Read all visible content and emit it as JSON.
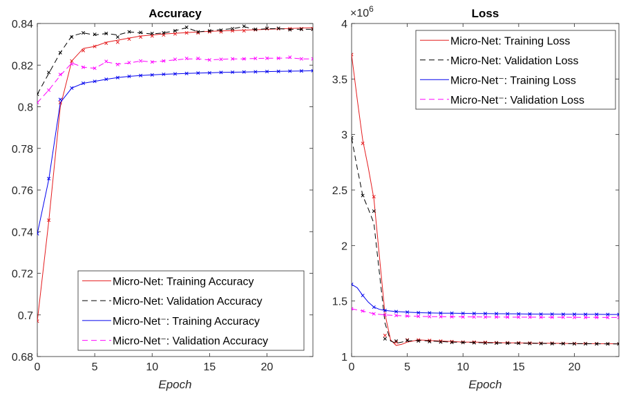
{
  "chart_data": [
    {
      "type": "line",
      "title": "Accuracy",
      "xlabel": "Epoch",
      "ylabel": "",
      "xlim": [
        0,
        24
      ],
      "ylim": [
        0.68,
        0.84
      ],
      "xticks": [
        "0",
        "5",
        "10",
        "15",
        "20"
      ],
      "yticks": [
        "0.68",
        "0.7",
        "0.72",
        "0.74",
        "0.76",
        "0.78",
        "0.8",
        "0.82",
        "0.84"
      ],
      "legend_position": "bottom-right",
      "grid": false,
      "series": [
        {
          "name": "Micro-Net: Training Accuracy",
          "color": "#e41a1c",
          "style": "solid",
          "x": [
            0,
            1,
            2,
            3,
            4,
            5,
            6,
            7,
            8,
            9,
            10,
            11,
            12,
            13,
            14,
            15,
            16,
            17,
            18,
            19,
            20,
            21,
            22,
            23,
            24
          ],
          "values": [
            0.697,
            0.745,
            0.8,
            0.822,
            0.828,
            0.829,
            0.831,
            0.832,
            0.833,
            0.834,
            0.8345,
            0.835,
            0.8353,
            0.8356,
            0.836,
            0.8362,
            0.8364,
            0.8366,
            0.8368,
            0.837,
            0.8372,
            0.8374,
            0.8376,
            0.8378,
            0.838
          ],
          "markers": [
            0.697,
            0.7455,
            0.802,
            0.822,
            0.827,
            0.829,
            0.8305,
            0.831,
            0.8325,
            0.8335,
            0.834,
            0.8345,
            0.835,
            0.8355,
            0.8355,
            0.836,
            0.836,
            0.8365,
            0.8365,
            0.837,
            0.8375,
            0.8375,
            0.8375,
            0.8375,
            0.8375
          ]
        },
        {
          "name": "Micro-Net: Validation Accuracy",
          "color": "#000000",
          "style": "dashed",
          "x": [
            0,
            1,
            2,
            3,
            4,
            5,
            6,
            7,
            8,
            9,
            10,
            11,
            12,
            13,
            14,
            15,
            16,
            17,
            18,
            19,
            20,
            21,
            22,
            23,
            24
          ],
          "values": [
            0.806,
            0.816,
            0.826,
            0.834,
            0.8355,
            0.8345,
            0.8352,
            0.8345,
            0.836,
            0.8355,
            0.835,
            0.8355,
            0.8365,
            0.838,
            0.836,
            0.8365,
            0.837,
            0.8375,
            0.8385,
            0.837,
            0.8375,
            0.8375,
            0.8372,
            0.8372,
            0.8372
          ],
          "markers": [
            0.806,
            0.8165,
            0.826,
            0.8335,
            0.8355,
            0.8348,
            0.8352,
            0.8335,
            0.836,
            0.8357,
            0.8352,
            0.8355,
            0.8365,
            0.8382,
            0.836,
            0.8365,
            0.8368,
            0.8375,
            0.8387,
            0.8372,
            0.8377,
            0.8377,
            0.837,
            0.8372,
            0.8372
          ]
        },
        {
          "name": "Micro-Net⁻: Training Accuracy",
          "color": "#0000ee",
          "style": "solid",
          "x": [
            0,
            1,
            2,
            3,
            4,
            5,
            6,
            7,
            8,
            9,
            10,
            11,
            12,
            13,
            14,
            15,
            16,
            17,
            18,
            19,
            20,
            21,
            22,
            23,
            24
          ],
          "values": [
            0.739,
            0.765,
            0.802,
            0.809,
            0.8113,
            0.8122,
            0.8132,
            0.814,
            0.8146,
            0.815,
            0.8153,
            0.8156,
            0.8158,
            0.816,
            0.8162,
            0.8163,
            0.8165,
            0.8166,
            0.8167,
            0.8168,
            0.8169,
            0.817,
            0.8171,
            0.8172,
            0.8173
          ],
          "markers": [
            0.739,
            0.7655,
            0.8035,
            0.809,
            0.8113,
            0.8122,
            0.8132,
            0.814,
            0.8146,
            0.815,
            0.8153,
            0.8156,
            0.8158,
            0.816,
            0.8162,
            0.8163,
            0.8165,
            0.8166,
            0.8167,
            0.8168,
            0.8169,
            0.817,
            0.8171,
            0.8172,
            0.8173
          ]
        },
        {
          "name": "Micro-Net⁻: Validation Accuracy",
          "color": "#ff00ff",
          "style": "dashed",
          "x": [
            0,
            1,
            2,
            3,
            4,
            5,
            6,
            7,
            8,
            9,
            10,
            11,
            12,
            13,
            14,
            15,
            16,
            17,
            18,
            19,
            20,
            21,
            22,
            23,
            24
          ],
          "values": [
            0.802,
            0.808,
            0.815,
            0.821,
            0.819,
            0.8185,
            0.8215,
            0.8205,
            0.821,
            0.822,
            0.8215,
            0.822,
            0.8225,
            0.823,
            0.823,
            0.8225,
            0.8228,
            0.823,
            0.823,
            0.8232,
            0.8233,
            0.8233,
            0.8235,
            0.823,
            0.823
          ],
          "markers": [
            0.802,
            0.808,
            0.8155,
            0.8205,
            0.819,
            0.8185,
            0.8218,
            0.8203,
            0.8212,
            0.822,
            0.8215,
            0.822,
            0.8228,
            0.8232,
            0.8232,
            0.8225,
            0.8228,
            0.823,
            0.823,
            0.8232,
            0.8233,
            0.8233,
            0.8238,
            0.823,
            0.823
          ]
        }
      ]
    },
    {
      "type": "line",
      "title": "Loss",
      "xlabel": "Epoch",
      "ylabel": "",
      "y_exponent_label": "×10",
      "y_exponent": "6",
      "xlim": [
        0,
        24
      ],
      "ylim": [
        1,
        4
      ],
      "xticks": [
        "0",
        "5",
        "10",
        "15",
        "20"
      ],
      "yticks": [
        "1",
        "1.5",
        "2",
        "2.5",
        "3",
        "3.5",
        "4"
      ],
      "legend_position": "top-right",
      "grid": false,
      "series": [
        {
          "name": "Micro-Net: Training Loss",
          "color": "#e41a1c",
          "style": "solid",
          "x": [
            0,
            0.5,
            1,
            1.5,
            2,
            2.5,
            3,
            3.5,
            4,
            4.5,
            5,
            6,
            7,
            8,
            9,
            10,
            11,
            12,
            13,
            14,
            15,
            16,
            17,
            18,
            19,
            20,
            21,
            22,
            23,
            24
          ],
          "values": [
            3.72,
            3.32,
            2.95,
            2.7,
            2.42,
            1.9,
            1.38,
            1.15,
            1.1,
            1.11,
            1.13,
            1.15,
            1.145,
            1.14,
            1.135,
            1.13,
            1.13,
            1.128,
            1.125,
            1.124,
            1.123,
            1.122,
            1.12,
            1.12,
            1.118,
            1.117,
            1.117,
            1.116,
            1.115,
            1.115
          ],
          "markers": [
            3.72,
            2.92,
            2.44,
            1.19,
            1.13,
            1.15,
            1.15,
            1.145,
            1.14,
            1.135,
            1.13,
            1.13,
            1.128,
            1.125,
            1.124,
            1.123,
            1.122,
            1.12,
            1.12,
            1.118,
            1.117,
            1.117,
            1.116,
            1.115,
            1.115
          ],
          "marker_x": [
            0,
            1,
            2,
            3,
            4,
            5,
            6,
            7,
            8,
            9,
            10,
            11,
            12,
            13,
            14,
            15,
            16,
            17,
            18,
            19,
            20,
            21,
            22,
            23,
            24
          ]
        },
        {
          "name": "Micro-Net: Validation Loss",
          "color": "#000000",
          "style": "dashed",
          "x": [
            0,
            0.5,
            1,
            1.5,
            2,
            2.5,
            3,
            3.5,
            4,
            4.5,
            5,
            6,
            7,
            8,
            9,
            10,
            11,
            12,
            13,
            14,
            15,
            16,
            17,
            18,
            19,
            20,
            21,
            22,
            23,
            24
          ],
          "values": [
            2.97,
            2.7,
            2.45,
            2.33,
            2.2,
            1.75,
            1.3,
            1.14,
            1.12,
            1.13,
            1.14,
            1.145,
            1.14,
            1.135,
            1.13,
            1.128,
            1.126,
            1.124,
            1.122,
            1.121,
            1.12,
            1.119,
            1.118,
            1.117,
            1.116,
            1.116,
            1.115,
            1.115,
            1.114,
            1.114
          ],
          "markers": [
            2.97,
            2.45,
            2.31,
            1.16,
            1.14,
            1.145,
            1.14,
            1.135,
            1.13,
            1.128,
            1.126,
            1.124,
            1.122,
            1.121,
            1.12,
            1.119,
            1.118,
            1.117,
            1.116,
            1.116,
            1.115,
            1.115,
            1.114,
            1.114,
            1.114
          ],
          "marker_x": [
            0,
            1,
            2,
            3,
            4,
            5,
            6,
            7,
            8,
            9,
            10,
            11,
            12,
            13,
            14,
            15,
            16,
            17,
            18,
            19,
            20,
            21,
            22,
            23,
            24
          ]
        },
        {
          "name": "Micro-Net⁻: Training Loss",
          "color": "#0000ee",
          "style": "solid",
          "x": [
            0,
            0.5,
            1,
            1.5,
            2,
            2.5,
            3,
            3.5,
            4,
            5,
            6,
            7,
            8,
            9,
            10,
            11,
            12,
            13,
            14,
            15,
            16,
            17,
            18,
            19,
            20,
            21,
            22,
            23,
            24
          ],
          "values": [
            1.65,
            1.62,
            1.55,
            1.49,
            1.445,
            1.425,
            1.415,
            1.41,
            1.405,
            1.4,
            1.395,
            1.393,
            1.391,
            1.39,
            1.389,
            1.388,
            1.387,
            1.386,
            1.385,
            1.384,
            1.383,
            1.382,
            1.382,
            1.381,
            1.381,
            1.38,
            1.38,
            1.379,
            1.379
          ],
          "markers": [
            1.65,
            1.55,
            1.445,
            1.415,
            1.405,
            1.4,
            1.395,
            1.393,
            1.391,
            1.39,
            1.389,
            1.388,
            1.387,
            1.386,
            1.385,
            1.384,
            1.383,
            1.382,
            1.382,
            1.381,
            1.381,
            1.38,
            1.38,
            1.379,
            1.379
          ],
          "marker_x": [
            0,
            1,
            2,
            3,
            4,
            5,
            6,
            7,
            8,
            9,
            10,
            11,
            12,
            13,
            14,
            15,
            16,
            17,
            18,
            19,
            20,
            21,
            22,
            23,
            24
          ]
        },
        {
          "name": "Micro-Net⁻: Validation Loss",
          "color": "#ff00ff",
          "style": "dashed",
          "x": [
            0,
            1,
            2,
            3,
            4,
            5,
            6,
            7,
            8,
            9,
            10,
            11,
            12,
            13,
            14,
            15,
            16,
            17,
            18,
            19,
            20,
            21,
            22,
            23,
            24
          ],
          "values": [
            1.43,
            1.41,
            1.385,
            1.375,
            1.37,
            1.365,
            1.362,
            1.36,
            1.359,
            1.358,
            1.357,
            1.357,
            1.356,
            1.356,
            1.355,
            1.355,
            1.355,
            1.354,
            1.354,
            1.354,
            1.353,
            1.353,
            1.353,
            1.352,
            1.352
          ],
          "markers": [
            1.43,
            1.41,
            1.385,
            1.375,
            1.37,
            1.365,
            1.362,
            1.36,
            1.359,
            1.358,
            1.357,
            1.357,
            1.356,
            1.356,
            1.355,
            1.355,
            1.355,
            1.354,
            1.354,
            1.354,
            1.353,
            1.353,
            1.353,
            1.352,
            1.352
          ],
          "marker_x": [
            0,
            1,
            2,
            3,
            4,
            5,
            6,
            7,
            8,
            9,
            10,
            11,
            12,
            13,
            14,
            15,
            16,
            17,
            18,
            19,
            20,
            21,
            22,
            23,
            24
          ]
        }
      ]
    }
  ]
}
